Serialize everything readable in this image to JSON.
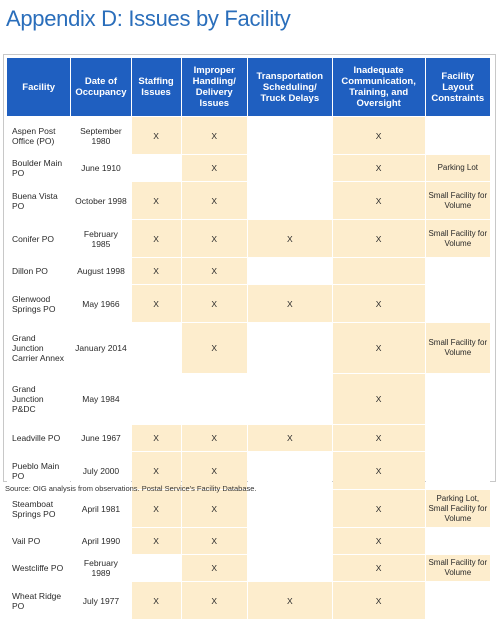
{
  "title": "Appendix D: Issues by Facility",
  "columns": [
    "Facility",
    "Date of Occupancy",
    "Staffing Issues",
    "Improper Handling/ Delivery Issues",
    "Transportation Scheduling/ Truck Delays",
    "Inadequate Communication, Training, and Oversight",
    "Facility Layout Constraints"
  ],
  "rows": [
    {
      "facility": "Aspen Post Office (PO)",
      "date": "September 1980",
      "staffing": "X",
      "handling": "X",
      "transport": "",
      "communication": "X",
      "layout": ""
    },
    {
      "facility": "Boulder Main PO",
      "date": "June 1910",
      "staffing": "",
      "handling": "X",
      "transport": "",
      "communication": "X",
      "layout": "Parking Lot"
    },
    {
      "facility": "Buena Vista PO",
      "date": "October 1998",
      "staffing": "X",
      "handling": "X",
      "transport": "",
      "communication": "X",
      "layout": "Small Facility for Volume"
    },
    {
      "facility": "Conifer PO",
      "date": "February 1985",
      "staffing": "X",
      "handling": "X",
      "transport": "X",
      "communication": "X",
      "layout": "Small Facility for Volume"
    },
    {
      "facility": "Dillon PO",
      "date": "August 1998",
      "staffing": "X",
      "handling": "X",
      "transport": "",
      "communication": "",
      "layout": ""
    },
    {
      "facility": "Glenwood Springs PO",
      "date": "May 1966",
      "staffing": "X",
      "handling": "X",
      "transport": "X",
      "communication": "X",
      "layout": ""
    },
    {
      "facility": "Grand Junction Carrier Annex",
      "date": "January 2014",
      "staffing": "",
      "handling": "X",
      "transport": "",
      "communication": "X",
      "layout": "Small Facility for Volume"
    },
    {
      "facility": "Grand Junction P&DC",
      "date": "May 1984",
      "staffing": "",
      "handling": "",
      "transport": "",
      "communication": "X",
      "layout": ""
    },
    {
      "facility": "Leadville PO",
      "date": "June 1967",
      "staffing": "X",
      "handling": "X",
      "transport": "X",
      "communication": "X",
      "layout": ""
    },
    {
      "facility": "Pueblo Main PO",
      "date": "July 2000",
      "staffing": "X",
      "handling": "X",
      "transport": "",
      "communication": "X",
      "layout": ""
    },
    {
      "facility": "Steamboat Springs PO",
      "date": "April 1981",
      "staffing": "X",
      "handling": "X",
      "transport": "",
      "communication": "X",
      "layout": "Parking Lot, Small Facility for Volume"
    },
    {
      "facility": "Vail PO",
      "date": "April 1990",
      "staffing": "X",
      "handling": "X",
      "transport": "",
      "communication": "X",
      "layout": ""
    },
    {
      "facility": "Westcliffe PO",
      "date": "February 1989",
      "staffing": "",
      "handling": "X",
      "transport": "",
      "communication": "X",
      "layout": "Small Facility for Volume"
    },
    {
      "facility": "Wheat Ridge PO",
      "date": "July 1977",
      "staffing": "X",
      "handling": "X",
      "transport": "X",
      "communication": "X",
      "layout": ""
    }
  ],
  "source": "Source: OIG analysis from observations. Postal Service's Facility Database.",
  "colors": {
    "title": "#2a6ebb",
    "header": "#1f5fc0",
    "shade": "#fdedcd"
  }
}
